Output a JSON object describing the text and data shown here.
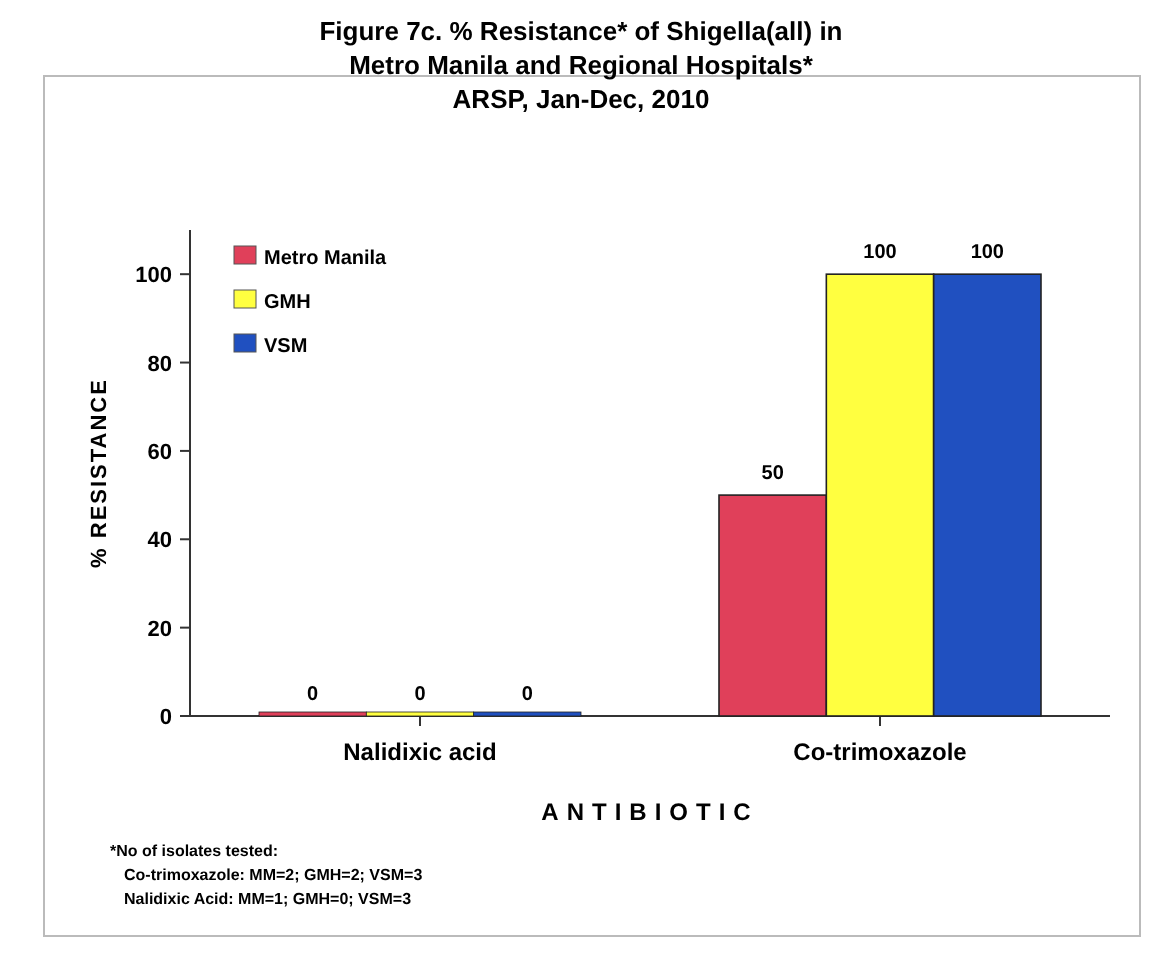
{
  "chart_data": {
    "type": "bar",
    "title": "Figure 7c. % Resistance* of Shigella(all)   in\nMetro Manila and Regional Hospitals*",
    "subtitle": "ARSP, Jan-Dec, 2010",
    "xlabel": "ANTIBIOTIC",
    "ylabel": "% RESISTANCE",
    "categories": [
      "Nalidixic acid",
      "Co-trimoxazole"
    ],
    "series": [
      {
        "name": "Metro Manila",
        "color": "#e0405a",
        "values": [
          0,
          50
        ]
      },
      {
        "name": "GMH",
        "color": "#ffff40",
        "values": [
          0,
          100
        ]
      },
      {
        "name": "VSM",
        "color": "#2050c0",
        "values": [
          0,
          100
        ]
      }
    ],
    "ylim": [
      0,
      110
    ],
    "yticks": [
      0,
      20,
      40,
      60,
      80,
      100
    ],
    "data_labels": true,
    "legend": "top left",
    "annotations": [
      "*No of isolates tested:",
      "Co-trimoxazole: MM=2; GMH=2; VSM=3",
      "Nalidixic Acid: MM=1; GMH=0; VSM=3"
    ]
  }
}
